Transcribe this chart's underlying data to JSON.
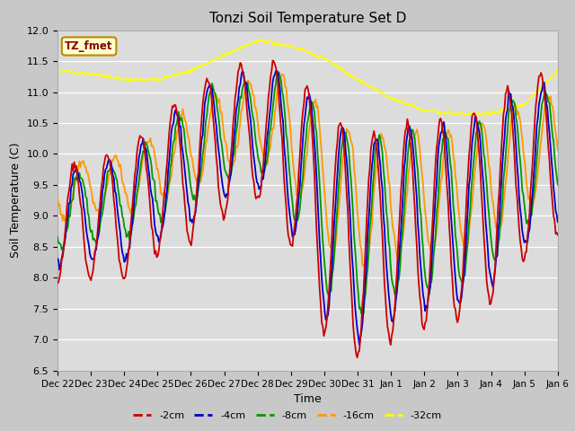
{
  "title": "Tonzi Soil Temperature Set D",
  "xlabel": "Time",
  "ylabel": "Soil Temperature (C)",
  "ylim": [
    6.5,
    12.0
  ],
  "yticks": [
    6.5,
    7.0,
    7.5,
    8.0,
    8.5,
    9.0,
    9.5,
    10.0,
    10.5,
    11.0,
    11.5,
    12.0
  ],
  "legend_label": "TZ_fmet",
  "line_colors": {
    "-2cm": "#cc0000",
    "-4cm": "#0000cc",
    "-8cm": "#009900",
    "-16cm": "#ff9900",
    "-32cm": "#ffff00"
  },
  "fig_facecolor": "#c8c8c8",
  "ax_facecolor": "#dcdcdc",
  "grid_color": "#ffffff",
  "x_labels": [
    "Dec 22",
    "Dec 23",
    "Dec 24",
    "Dec 25",
    "Dec 26",
    "Dec 27",
    "Dec 28",
    "Dec 29",
    "Dec 30",
    "Dec 31",
    "Jan 1",
    "Jan 2",
    "Jan 3",
    "Jan 4",
    "Jan 5",
    "Jan 6"
  ],
  "n_points": 480
}
